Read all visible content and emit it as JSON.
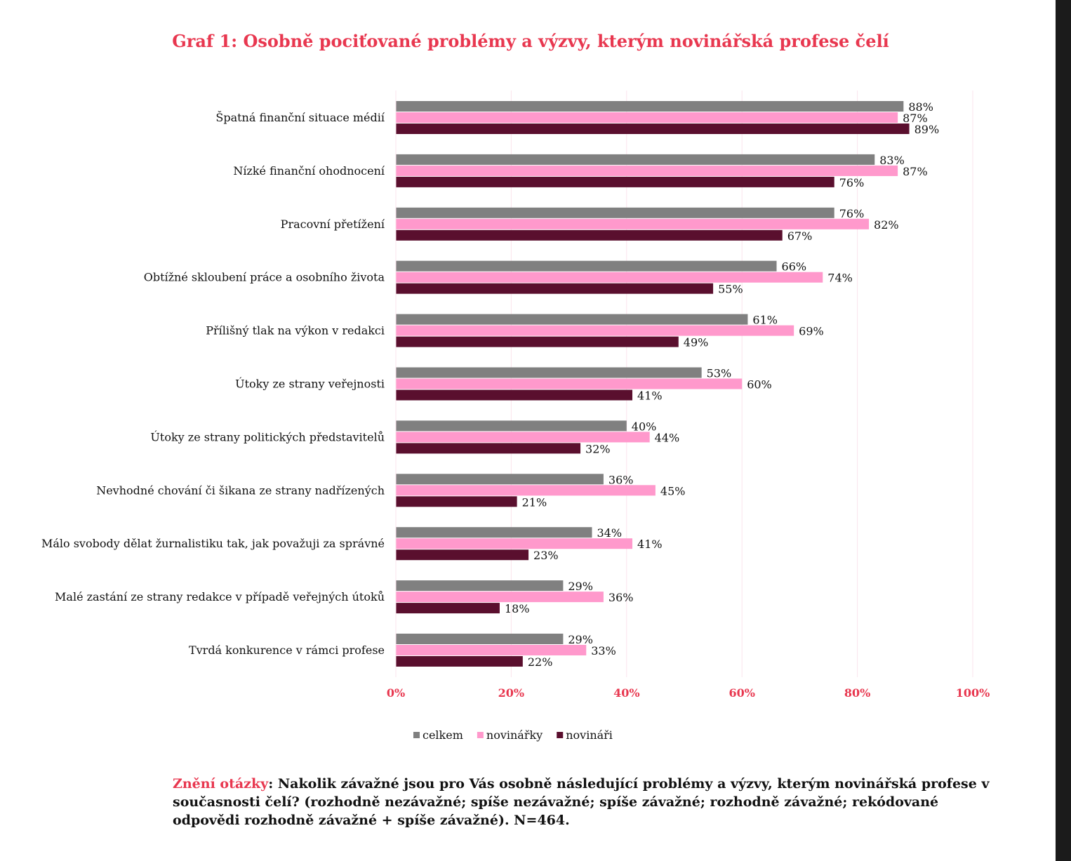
{
  "chart_data": {
    "type": "bar",
    "orientation": "horizontal",
    "title": "Graf 1: Osobně pociťované problémy a výzvy, kterým novinářská profese čelí",
    "categories": [
      "Špatná finanční situace médií",
      "Nízké finanční ohodnocení",
      "Pracovní přetížení",
      "Obtížné skloubení práce a osobního života",
      "Přílišný tlak na výkon v redakci",
      "Útoky ze strany veřejnosti",
      "Útoky ze strany politických představitelů",
      "Nevhodné chování či šikana ze strany nadřízených",
      "Málo svobody dělat žurnalistiku tak, jak považuji za správné",
      "Malé zastání ze strany redakce v případě veřejných útoků",
      "Tvrdá konkurence v rámci profese"
    ],
    "series": [
      {
        "name": "celkem",
        "color": "#808080",
        "values": [
          88,
          83,
          76,
          66,
          61,
          53,
          40,
          36,
          34,
          29,
          29
        ]
      },
      {
        "name": "novinářky",
        "color": "#ff99cc",
        "values": [
          87,
          87,
          82,
          74,
          69,
          60,
          44,
          45,
          41,
          36,
          33
        ]
      },
      {
        "name": "novináři",
        "color": "#5a0f2e",
        "values": [
          89,
          76,
          67,
          55,
          49,
          41,
          32,
          21,
          23,
          18,
          22
        ]
      }
    ],
    "xlim": [
      0,
      100
    ],
    "xticks": [
      "0%",
      "20%",
      "40%",
      "60%",
      "80%",
      "100%"
    ],
    "value_suffix": "%",
    "grid": true,
    "legend": "bottom",
    "accent_color": "#e8374f"
  },
  "note": {
    "label": "Znění otázky",
    "text": ": Nakolik závažné jsou pro Vás osobně následující problémy a výzvy, kterým novinářská profese v současnosti čelí? (rozhodně nezávažné; spíše nezávažné; spíše závažné; rozhodně závažné; rekódované odpovědi rozhodně závažné + spíše závažné). N=464."
  }
}
